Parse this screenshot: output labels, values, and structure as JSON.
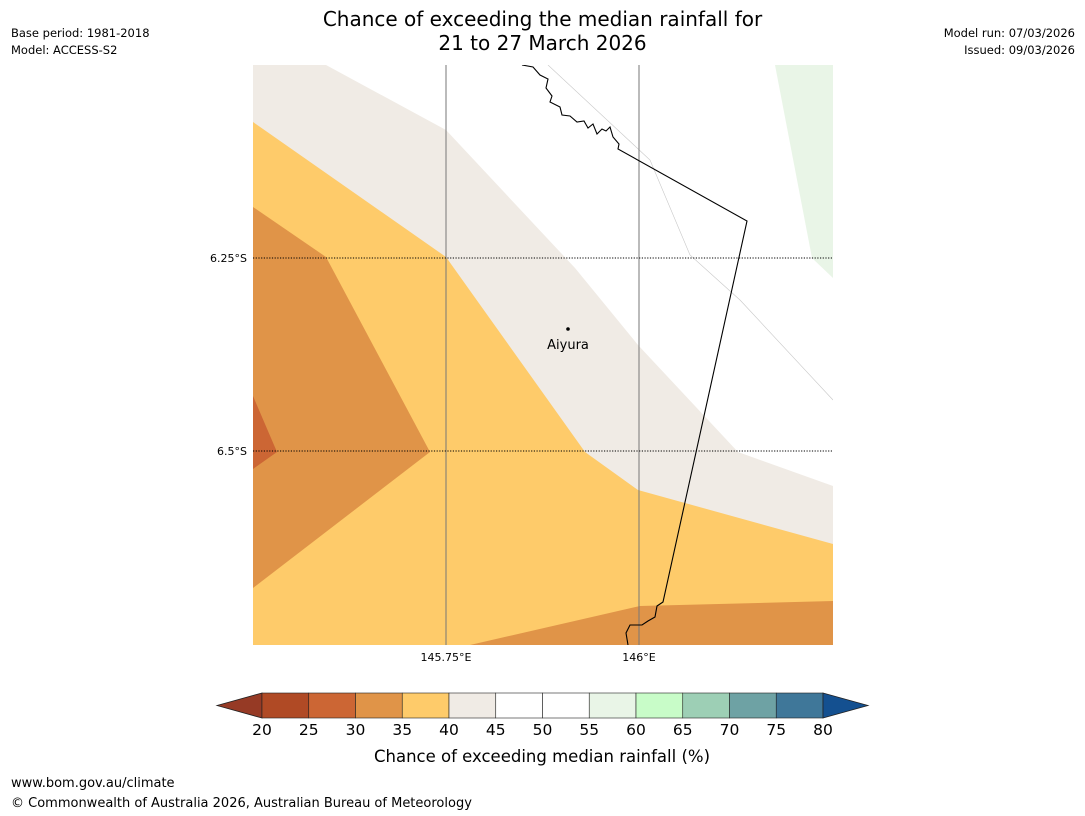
{
  "title": {
    "line1": "Chance of exceeding the median rainfall for",
    "line2": "21 to 27 March 2026"
  },
  "meta": {
    "base_period": "Base period: 1981-2018",
    "model": "Model: ACCESS-S2",
    "model_run": "Model run: 07/03/2026",
    "issued": "Issued: 09/03/2026"
  },
  "map": {
    "latitude_labels": [
      "6.25°S",
      "6.5°S"
    ],
    "longitude_labels": [
      "145.75°E",
      "146°E"
    ],
    "place": "Aiyura",
    "colors": {
      "c20_25": "#b04a25",
      "c25_30": "#cc6634",
      "c30_35": "#e09448",
      "c35_40": "#fecb6a",
      "c40_45": "#f0ebe5",
      "c45_55": "#ffffff",
      "c55_60": "#e9f5e7"
    }
  },
  "legend": {
    "title": "Chance of exceeding median rainfall (%)",
    "ticks": [
      "20",
      "25",
      "30",
      "35",
      "40",
      "45",
      "50",
      "55",
      "60",
      "65",
      "70",
      "75",
      "80"
    ],
    "colors": [
      "#b04a25",
      "#cc6634",
      "#e09448",
      "#fecb6a",
      "#f0ebe5",
      "#ffffff",
      "#ffffff",
      "#e9f5e7",
      "#c8fcc8",
      "#9dcfb5",
      "#6ea2a4",
      "#3f7799"
    ],
    "under_color": "#963a25",
    "over_color": "#145090"
  },
  "footer": {
    "url": "www.bom.gov.au/climate",
    "copyright": "© Commonwealth of Australia 2026, Australian Bureau of Meteorology"
  }
}
